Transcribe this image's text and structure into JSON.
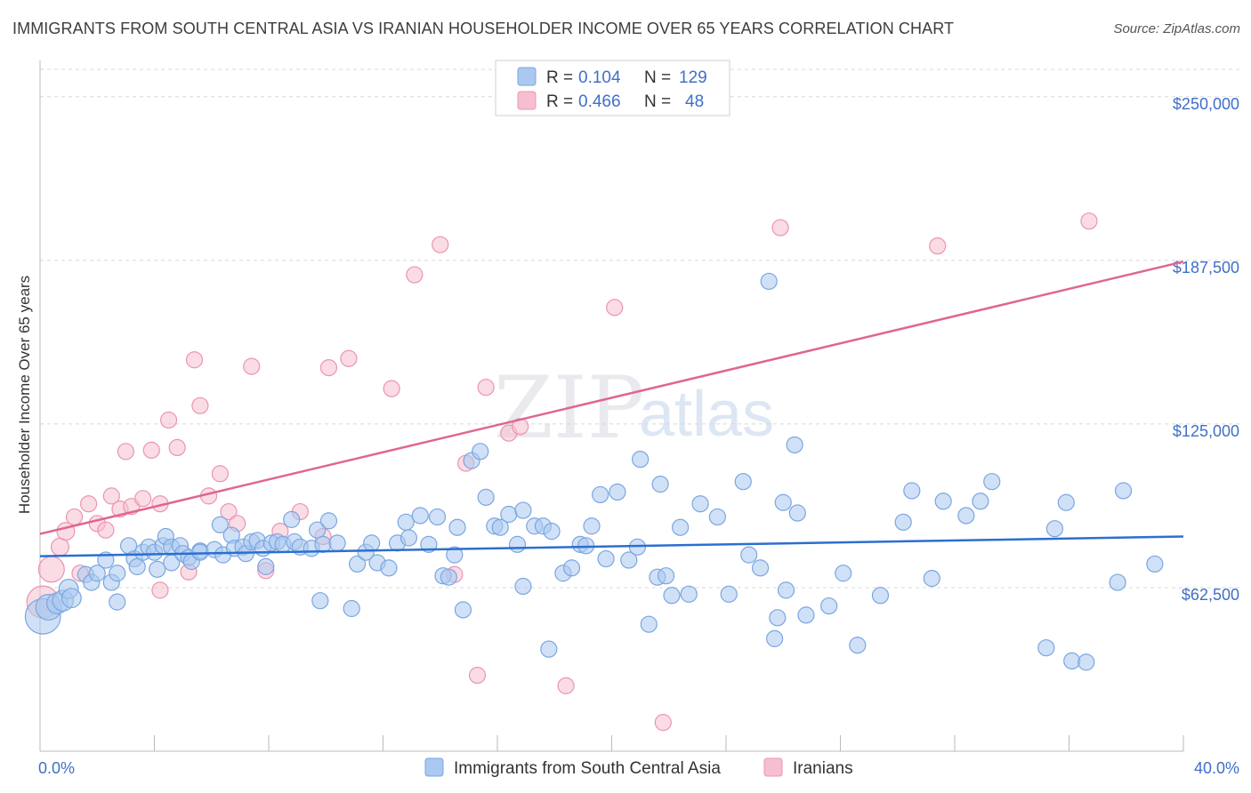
{
  "title": "IMMIGRANTS FROM SOUTH CENTRAL ASIA VS IRANIAN HOUSEHOLDER INCOME OVER 65 YEARS CORRELATION CHART",
  "source": "Source: ZipAtlas.com",
  "watermark": {
    "zip": "ZIP",
    "atlas": "atlas"
  },
  "legend": {
    "rows": [
      {
        "r_label": "R =",
        "r_value": "0.104",
        "n_label": "N =",
        "n_value": "129"
      },
      {
        "r_label": "R =",
        "r_value": "0.466",
        "n_label": "N =",
        "n_value": "48"
      }
    ]
  },
  "colors": {
    "blue_fill": "#aac8f0",
    "blue_stroke": "#7aa6e0",
    "blue_line": "#2c6fcf",
    "pink_fill": "#f6bfd0",
    "pink_stroke": "#ec94b0",
    "pink_line": "#e0668f",
    "grid": "#d8d8d8",
    "axis_label": "#3f6fc8"
  },
  "chart_data": {
    "type": "scatter",
    "title": "IMMIGRANTS FROM SOUTH CENTRAL ASIA VS IRANIAN HOUSEHOLDER INCOME OVER 65 YEARS CORRELATION CHART",
    "xlabel": "",
    "ylabel": "Householder Income Over 65 years",
    "xlim": [
      0,
      40
    ],
    "ylim": [
      0,
      262500
    ],
    "x_tick_labels": [
      "0.0%",
      "40.0%"
    ],
    "y_ticks": [
      62500,
      125000,
      187500,
      250000
    ],
    "y_tick_labels": [
      "$62,500",
      "$125,000",
      "$187,500",
      "$250,000"
    ],
    "grid": "horizontal dashed",
    "legend_position": "top-center and bottom",
    "series": [
      {
        "name": "Immigrants from South Central Asia",
        "r": 0.104,
        "n": 129,
        "trend": [
          [
            0,
            74500
          ],
          [
            40,
            82000
          ]
        ],
        "points": [
          [
            0.1,
            51500,
            2.2
          ],
          [
            0.3,
            55000,
            1.6
          ],
          [
            0.6,
            56500,
            1.3
          ],
          [
            0.8,
            57500,
            1.3
          ],
          [
            1.0,
            62000,
            1.2
          ],
          [
            1.1,
            58500,
            1.2
          ],
          [
            1.6,
            67500,
            1
          ],
          [
            1.8,
            64500,
            1
          ],
          [
            2.0,
            68000,
            1
          ],
          [
            2.3,
            73000,
            1
          ],
          [
            2.5,
            64500,
            1
          ],
          [
            2.7,
            57000,
            1
          ],
          [
            2.7,
            68000,
            1
          ],
          [
            3.1,
            78500,
            1
          ],
          [
            3.3,
            73500,
            1
          ],
          [
            3.4,
            70500,
            1
          ],
          [
            3.6,
            76000,
            1
          ],
          [
            4.6,
            72000,
            1
          ],
          [
            3.8,
            78000,
            1
          ],
          [
            4.0,
            76000,
            1
          ],
          [
            4.1,
            69500,
            1
          ],
          [
            4.3,
            78500,
            1
          ],
          [
            4.4,
            82000,
            1
          ],
          [
            4.6,
            78000,
            1
          ],
          [
            4.9,
            78500,
            1
          ],
          [
            5.0,
            75500,
            1
          ],
          [
            5.2,
            74000,
            1
          ],
          [
            5.3,
            72500,
            1
          ],
          [
            5.6,
            76500,
            1
          ],
          [
            5.6,
            76000,
            1
          ],
          [
            6.3,
            86500,
            1
          ],
          [
            6.1,
            77000,
            1
          ],
          [
            6.4,
            75000,
            1
          ],
          [
            6.7,
            82500,
            1
          ],
          [
            6.8,
            77500,
            1
          ],
          [
            7.1,
            78000,
            1
          ],
          [
            7.2,
            75500,
            1
          ],
          [
            7.4,
            80000,
            1
          ],
          [
            7.6,
            80500,
            1
          ],
          [
            7.8,
            77500,
            1
          ],
          [
            8.1,
            79500,
            1
          ],
          [
            8.3,
            80000,
            1
          ],
          [
            8.8,
            88500,
            1
          ],
          [
            8.5,
            79000,
            1
          ],
          [
            8.9,
            80000,
            1
          ],
          [
            9.1,
            78000,
            1
          ],
          [
            9.5,
            77500,
            1
          ],
          [
            9.7,
            84500,
            1
          ],
          [
            9.9,
            79000,
            1
          ],
          [
            10.1,
            88000,
            1
          ],
          [
            10.4,
            79500,
            1
          ],
          [
            9.8,
            57500,
            1
          ],
          [
            10.9,
            54500,
            1
          ],
          [
            11.1,
            71500,
            1
          ],
          [
            11.4,
            76000,
            1
          ],
          [
            11.6,
            79500,
            1
          ],
          [
            11.8,
            72000,
            1
          ],
          [
            12.2,
            70000,
            1
          ],
          [
            12.5,
            79500,
            1
          ],
          [
            12.8,
            87500,
            1
          ],
          [
            12.9,
            81500,
            1
          ],
          [
            13.3,
            90000,
            1
          ],
          [
            13.6,
            79000,
            1
          ],
          [
            13.9,
            89500,
            1
          ],
          [
            14.1,
            67000,
            1
          ],
          [
            14.3,
            66500,
            1
          ],
          [
            14.5,
            75000,
            1
          ],
          [
            14.6,
            85500,
            1
          ],
          [
            14.8,
            54000,
            1
          ],
          [
            15.1,
            111000,
            1
          ],
          [
            15.4,
            114500,
            1
          ],
          [
            15.6,
            97000,
            1
          ],
          [
            15.9,
            86000,
            1
          ],
          [
            16.1,
            85500,
            1
          ],
          [
            16.4,
            90500,
            1
          ],
          [
            16.7,
            79000,
            1
          ],
          [
            16.9,
            92000,
            1
          ],
          [
            17.3,
            86000,
            1
          ],
          [
            17.6,
            86000,
            1
          ],
          [
            17.9,
            84000,
            1
          ],
          [
            17.8,
            39000,
            1
          ],
          [
            18.3,
            68000,
            1
          ],
          [
            18.6,
            70000,
            1
          ],
          [
            18.9,
            79000,
            1
          ],
          [
            19.1,
            78500,
            1
          ],
          [
            19.3,
            86000,
            1
          ],
          [
            19.6,
            98000,
            1
          ],
          [
            19.8,
            73500,
            1
          ],
          [
            20.2,
            99000,
            1
          ],
          [
            20.6,
            73000,
            1
          ],
          [
            20.9,
            78000,
            1
          ],
          [
            21.0,
            111500,
            1
          ],
          [
            21.3,
            48500,
            1
          ],
          [
            21.6,
            66500,
            1
          ],
          [
            21.9,
            67000,
            1
          ],
          [
            21.7,
            102000,
            1
          ],
          [
            22.1,
            59500,
            1
          ],
          [
            22.4,
            85500,
            1
          ],
          [
            22.7,
            60000,
            1
          ],
          [
            23.1,
            94500,
            1
          ],
          [
            23.7,
            89500,
            1
          ],
          [
            24.1,
            60000,
            1
          ],
          [
            24.6,
            103000,
            1
          ],
          [
            24.8,
            75000,
            1
          ],
          [
            25.2,
            70000,
            1
          ],
          [
            25.8,
            51000,
            1
          ],
          [
            25.5,
            179500,
            1
          ],
          [
            25.7,
            43000,
            1
          ],
          [
            26.1,
            61500,
            1
          ],
          [
            26.4,
            117000,
            1
          ],
          [
            26.0,
            95000,
            1
          ],
          [
            26.5,
            91000,
            1
          ],
          [
            26.8,
            52000,
            1
          ],
          [
            27.6,
            55500,
            1
          ],
          [
            28.1,
            68000,
            1
          ],
          [
            28.6,
            40500,
            1
          ],
          [
            29.4,
            59500,
            1
          ],
          [
            30.2,
            87500,
            1
          ],
          [
            31.6,
            95500,
            1
          ],
          [
            32.4,
            90000,
            1
          ],
          [
            32.9,
            95500,
            1
          ],
          [
            33.3,
            103000,
            1
          ],
          [
            35.2,
            39500,
            1
          ],
          [
            35.5,
            85000,
            1
          ],
          [
            35.9,
            95000,
            1
          ],
          [
            36.1,
            34500,
            1
          ],
          [
            36.6,
            34000,
            1
          ],
          [
            37.7,
            64500,
            1
          ],
          [
            37.9,
            99500,
            1
          ],
          [
            39.0,
            71500,
            1
          ],
          [
            30.5,
            99500,
            1
          ],
          [
            31.2,
            66000,
            1
          ],
          [
            7.9,
            70500,
            1
          ],
          [
            16.9,
            63000,
            1
          ]
        ]
      },
      {
        "name": "Iranians",
        "r": 0.466,
        "n": 48,
        "trend": [
          [
            0,
            83000
          ],
          [
            40,
            187000
          ]
        ],
        "points": [
          [
            0.1,
            57000,
            2.0
          ],
          [
            0.4,
            69500,
            1.6
          ],
          [
            0.7,
            78000,
            1.1
          ],
          [
            0.9,
            84000,
            1.1
          ],
          [
            1.2,
            89500,
            1
          ],
          [
            1.4,
            68000,
            1
          ],
          [
            1.7,
            94500,
            1
          ],
          [
            2.0,
            87000,
            1
          ],
          [
            2.3,
            84500,
            1
          ],
          [
            2.5,
            97500,
            1
          ],
          [
            2.8,
            92500,
            1
          ],
          [
            3.0,
            114500,
            1
          ],
          [
            3.2,
            93500,
            1
          ],
          [
            3.6,
            96500,
            1
          ],
          [
            3.9,
            115000,
            1
          ],
          [
            4.2,
            94500,
            1
          ],
          [
            4.5,
            126500,
            1
          ],
          [
            4.8,
            116000,
            1
          ],
          [
            4.2,
            61500,
            1
          ],
          [
            5.2,
            68500,
            1
          ],
          [
            5.4,
            149500,
            1
          ],
          [
            5.6,
            132000,
            1
          ],
          [
            5.9,
            97500,
            1
          ],
          [
            6.3,
            106000,
            1
          ],
          [
            6.6,
            91500,
            1
          ],
          [
            6.9,
            87000,
            1
          ],
          [
            7.4,
            147000,
            1
          ],
          [
            7.9,
            69000,
            1
          ],
          [
            8.4,
            84000,
            1
          ],
          [
            9.1,
            91500,
            1
          ],
          [
            9.9,
            82000,
            1
          ],
          [
            10.1,
            146500,
            1
          ],
          [
            10.8,
            150000,
            1
          ],
          [
            12.3,
            138500,
            1
          ],
          [
            13.1,
            182000,
            1
          ],
          [
            14.0,
            193500,
            1
          ],
          [
            14.5,
            67500,
            1
          ],
          [
            14.9,
            110000,
            1
          ],
          [
            15.3,
            29000,
            1
          ],
          [
            15.6,
            139000,
            1
          ],
          [
            16.4,
            121500,
            1
          ],
          [
            16.8,
            124000,
            1
          ],
          [
            18.4,
            25000,
            1
          ],
          [
            20.1,
            169500,
            1
          ],
          [
            21.8,
            11000,
            1
          ],
          [
            25.9,
            200000,
            1
          ],
          [
            31.4,
            193000,
            1
          ],
          [
            36.7,
            202500,
            1
          ]
        ]
      }
    ]
  },
  "bottom_legend": {
    "items": [
      {
        "label": "Immigrants from South Central Asia"
      },
      {
        "label": "Iranians"
      }
    ]
  }
}
